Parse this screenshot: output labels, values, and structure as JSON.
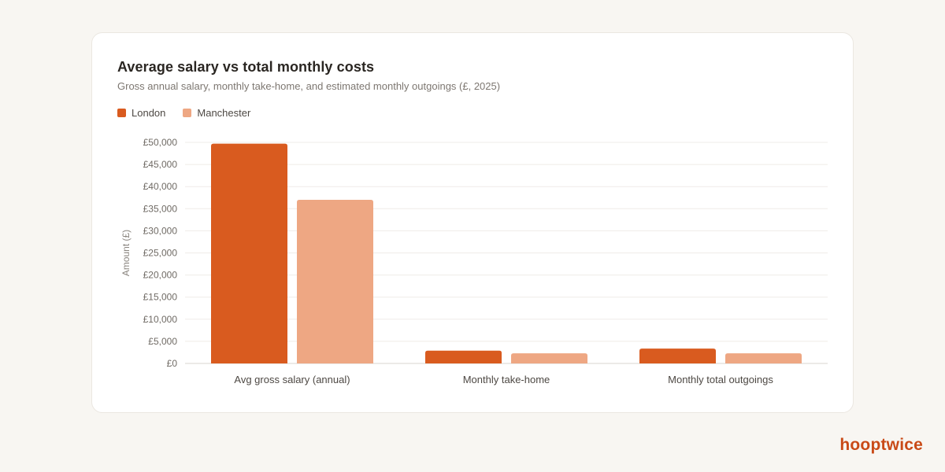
{
  "card": {
    "title": "Average salary vs total monthly costs",
    "subtitle": "Gross annual salary, monthly take-home, and estimated monthly outgoings (£, 2025)"
  },
  "legend": [
    {
      "label": "London",
      "color": "#d95b1f"
    },
    {
      "label": "Manchester",
      "color": "#eea783"
    }
  ],
  "brand": "hooptwice",
  "chart_data": {
    "type": "bar",
    "title": "Average salary vs total monthly costs",
    "subtitle": "Gross annual salary, monthly take-home, and estimated monthly outgoings (£, 2025)",
    "categories": [
      "Avg gross salary (annual)",
      "Monthly take-home",
      "Monthly total outgoings"
    ],
    "series": [
      {
        "name": "London",
        "color": "#d95b1f",
        "values": [
          49700,
          2900,
          3350
        ]
      },
      {
        "name": "Manchester",
        "color": "#eea783",
        "values": [
          37000,
          2300,
          2300
        ]
      }
    ],
    "ylabel": "Amount (£)",
    "xlabel": "",
    "ylim": [
      0,
      50000
    ],
    "yticks": [
      0,
      5000,
      10000,
      15000,
      20000,
      25000,
      30000,
      35000,
      40000,
      45000,
      50000
    ],
    "ytick_labels": [
      "£0",
      "£5,000",
      "£10,000",
      "£15,000",
      "£20,000",
      "£25,000",
      "£30,000",
      "£35,000",
      "£40,000",
      "£45,000",
      "£50,000"
    ],
    "grid": true,
    "legend_position": "top-left"
  }
}
